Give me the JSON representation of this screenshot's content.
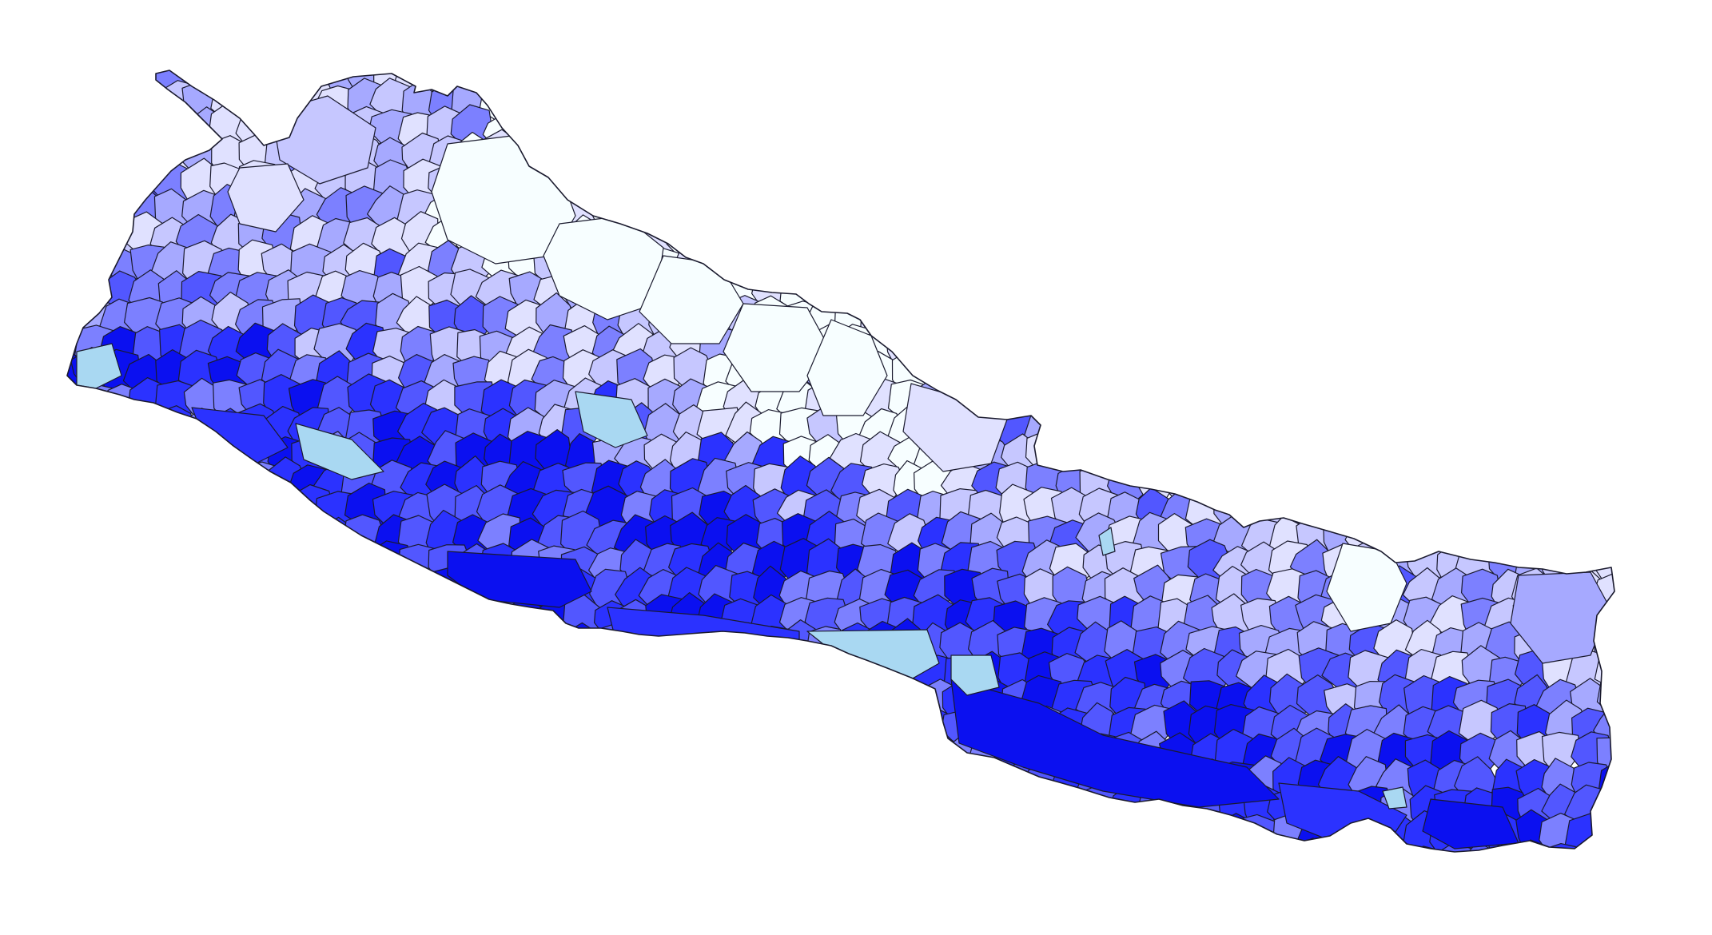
{
  "map": {
    "type": "choropleth",
    "country": "",
    "palette": {
      "c0": "#f7feff",
      "c1": "#e0e1ff",
      "c2": "#c6c7ff",
      "c3": "#a6a9ff",
      "c4": "#7c80ff",
      "c5": "#5257ff",
      "c6": "#2b32ff",
      "c7": "#0b10f0",
      "water": "#a9d8f2"
    }
  }
}
